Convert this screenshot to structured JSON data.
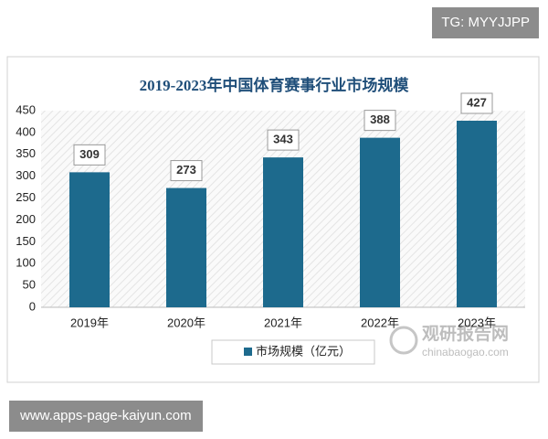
{
  "chart_data": {
    "type": "bar",
    "title": "2019-2023年中国体育赛事行业市场规模",
    "categories": [
      "2019年",
      "2020年",
      "2021年",
      "2022年",
      "2023年"
    ],
    "series": [
      {
        "name": "市场规模（亿元）",
        "color": "#1d6a8d",
        "values": [
          309,
          273,
          343,
          388,
          427
        ]
      }
    ],
    "ylim": [
      0,
      450
    ],
    "yticks": [
      0,
      50,
      100,
      150,
      200,
      250,
      300,
      350,
      400,
      450
    ],
    "grid": false
  },
  "tag": "TG: MYYJJPP",
  "watermark": {
    "name": "观研报告网",
    "site": "chinabaogao.com"
  },
  "footer": "www.apps-page-kaiyun.com"
}
